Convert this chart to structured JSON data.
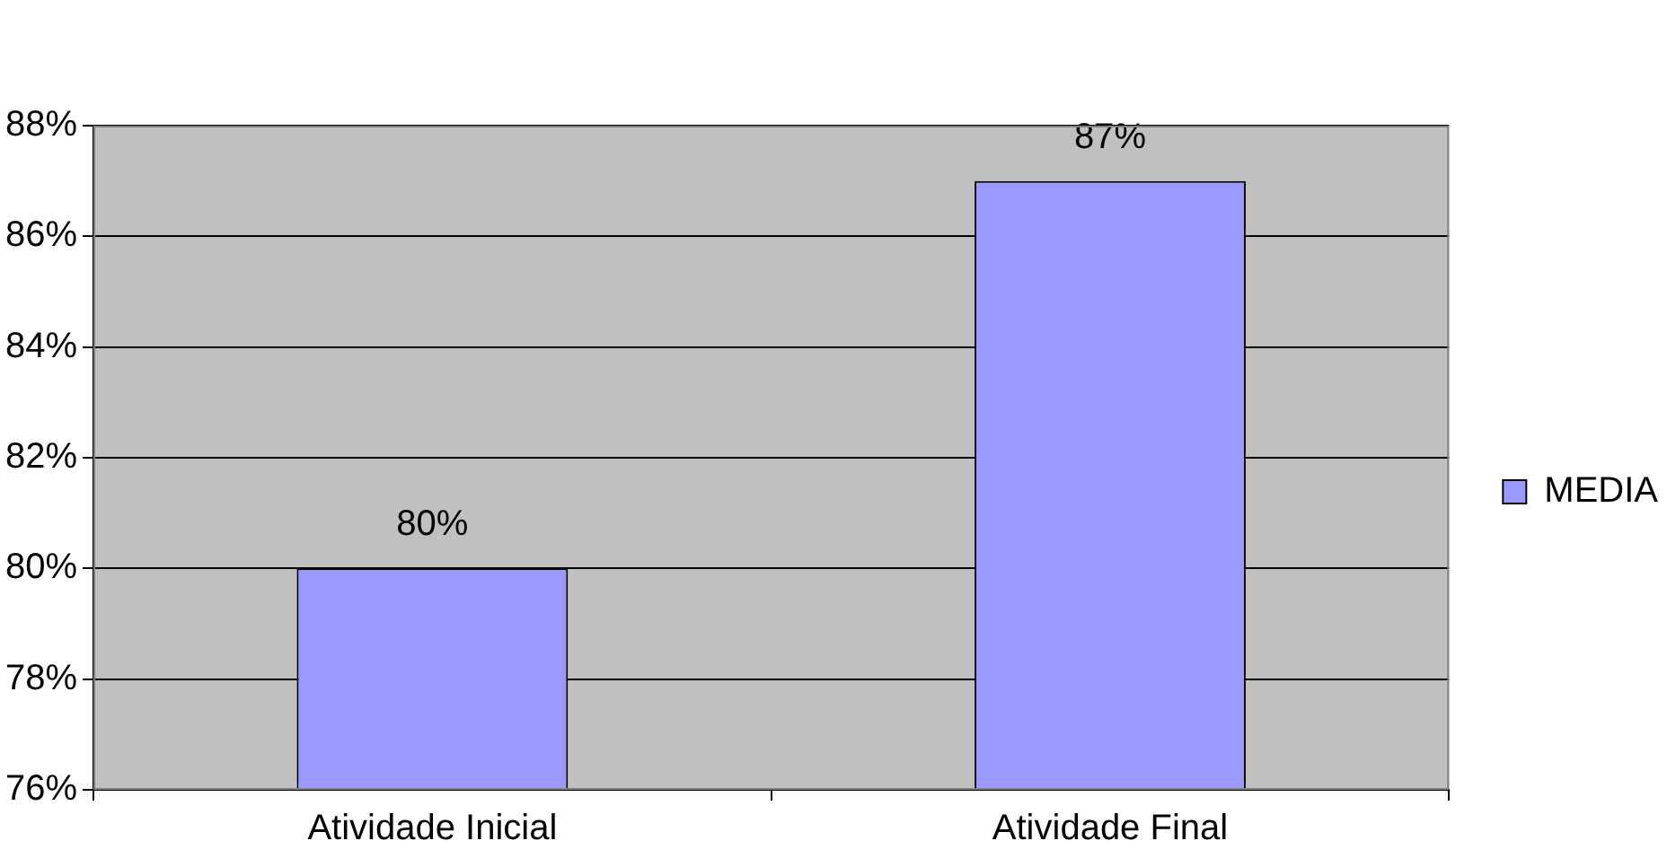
{
  "chart_data": {
    "type": "bar",
    "categories": [
      "Atividade Inicial",
      "Atividade Final"
    ],
    "series": [
      {
        "name": "MEDIA",
        "color": "#9999ff",
        "values": [
          80,
          87
        ],
        "value_labels": [
          "80%",
          "87%"
        ]
      }
    ],
    "ylim": [
      76,
      88
    ],
    "yticks": [
      {
        "value": 76,
        "label": "76%"
      },
      {
        "value": 78,
        "label": "78%"
      },
      {
        "value": 80,
        "label": "80%"
      },
      {
        "value": 82,
        "label": "82%"
      },
      {
        "value": 84,
        "label": "84%"
      },
      {
        "value": 86,
        "label": "86%"
      },
      {
        "value": 88,
        "label": "88%"
      }
    ],
    "grid": "y",
    "legend": "right"
  }
}
